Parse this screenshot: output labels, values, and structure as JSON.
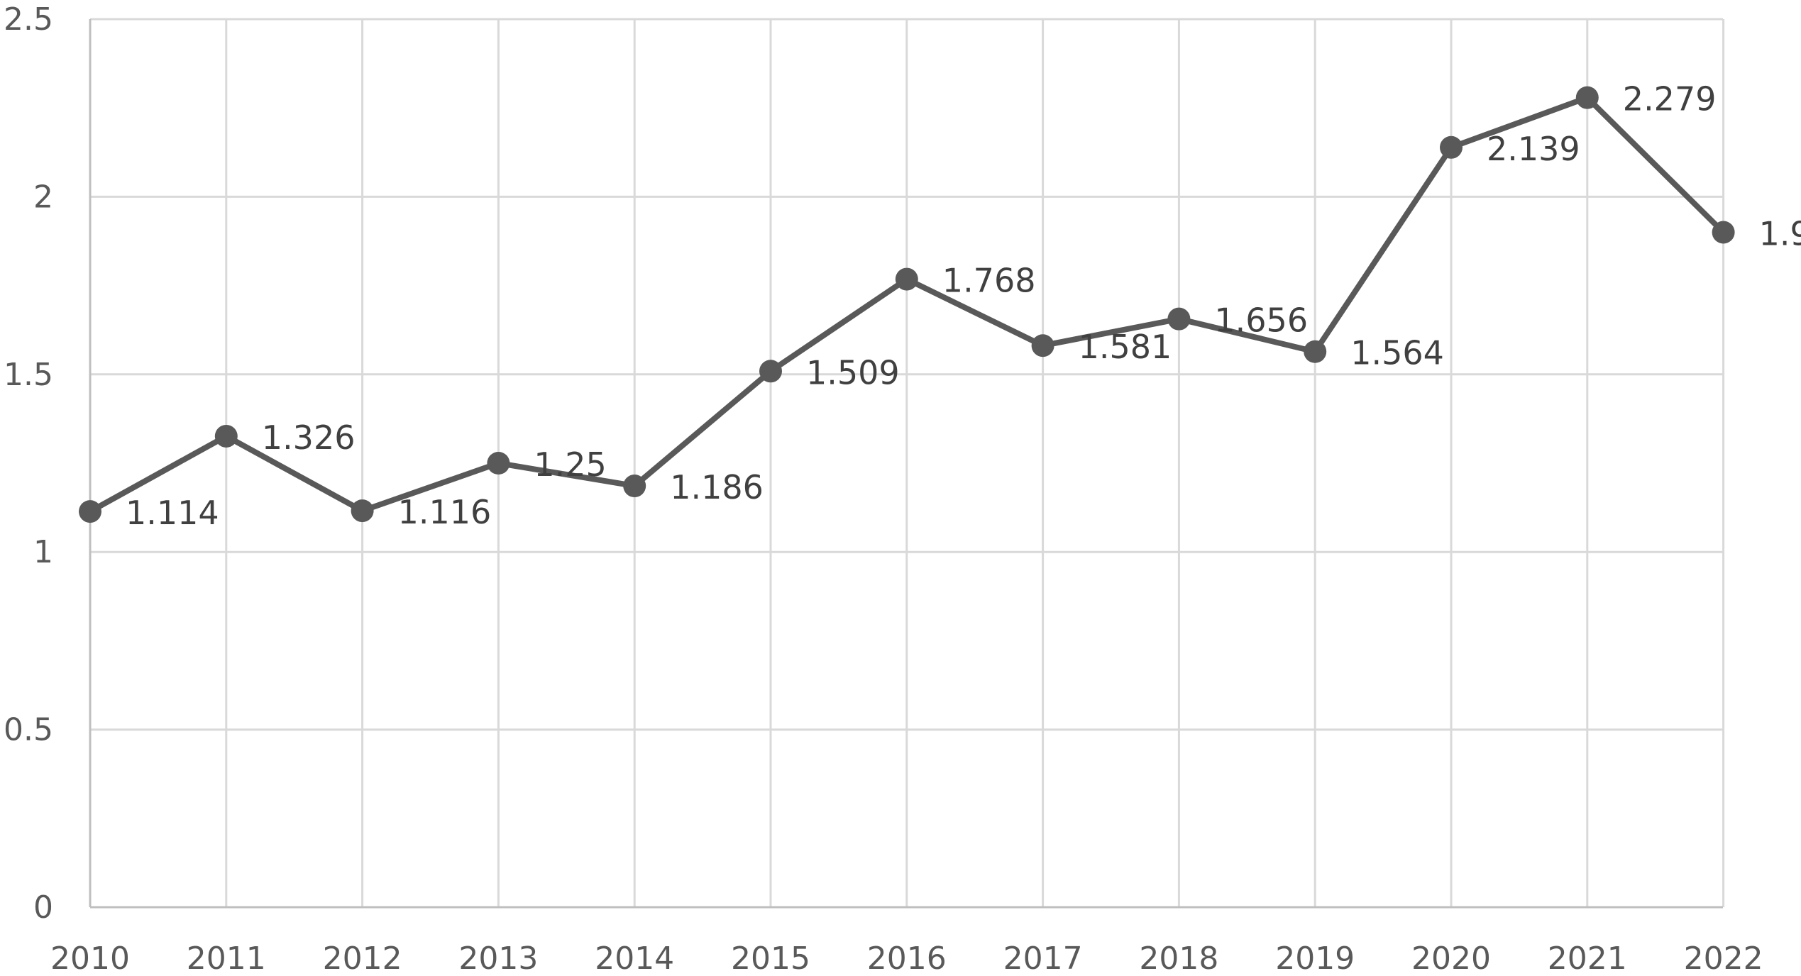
{
  "chart_data": {
    "type": "line",
    "title": "",
    "xlabel": "",
    "ylabel": "",
    "categories": [
      "2010",
      "2011",
      "2012",
      "2013",
      "2014",
      "2015",
      "2016",
      "2017",
      "2018",
      "2019",
      "2020",
      "2021",
      "2022"
    ],
    "series": [
      {
        "values": [
          1.114,
          1.326,
          1.116,
          1.25,
          1.186,
          1.509,
          1.768,
          1.581,
          1.656,
          1.564,
          2.139,
          2.279,
          1.9
        ]
      }
    ],
    "data_labels": [
      "1.114",
      "1.326",
      "1.116",
      "1.25",
      "1.186",
      "1.509",
      "1.768",
      "1.581",
      "1.656",
      "1.564",
      "2.139",
      "2.279",
      "1.9"
    ],
    "ylim": [
      0,
      2.5
    ],
    "y_ticks": [
      0,
      0.5,
      1,
      1.5,
      2,
      2.5
    ],
    "y_tick_labels": [
      "0",
      "0.5",
      "1",
      "1.5",
      "2",
      "2.5"
    ],
    "grid": true,
    "legend": "none",
    "colors": {
      "line": "#595959",
      "grid": "#d9d9d9",
      "text": "#595959"
    }
  }
}
